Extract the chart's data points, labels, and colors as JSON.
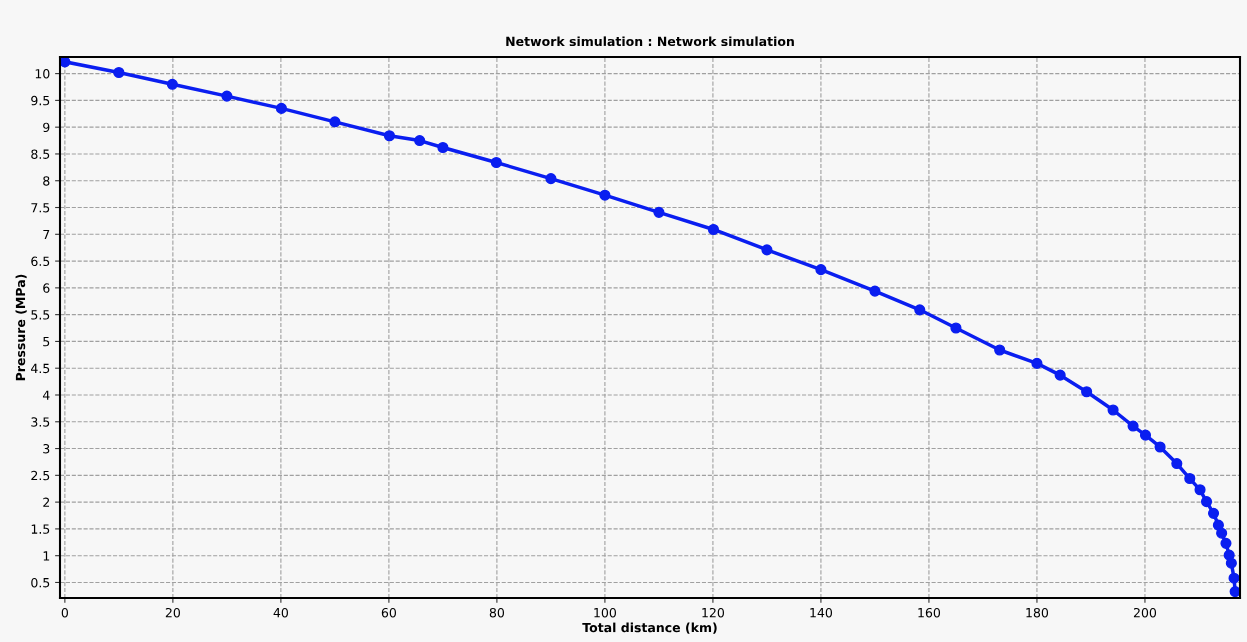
{
  "chart_data": {
    "type": "line",
    "title": "Network simulation : Network simulation",
    "xlabel": "Total distance (km)",
    "ylabel": "Pressure (MPa)",
    "series": [
      {
        "color": "#0a1ef0",
        "x": [
          0,
          10,
          19.9,
          30,
          40.1,
          50,
          60.1,
          65.7,
          70,
          79.9,
          90,
          100,
          110,
          120.1,
          130,
          140,
          150,
          158.3,
          165,
          173.1,
          180,
          184.3,
          189.2,
          194.1,
          197.8,
          200.1,
          202.8,
          205.9,
          208.3,
          210.2,
          211.4,
          212.7,
          213.6,
          214.2,
          215,
          215.6,
          216,
          216.5,
          216.7
        ],
        "values": [
          10.22,
          10.02,
          9.8,
          9.58,
          9.35,
          9.1,
          8.84,
          8.75,
          8.62,
          8.34,
          8.04,
          7.73,
          7.41,
          7.09,
          6.71,
          6.34,
          5.94,
          5.59,
          5.25,
          4.84,
          4.59,
          4.37,
          4.06,
          3.72,
          3.42,
          3.25,
          3.03,
          2.72,
          2.44,
          2.23,
          2.01,
          1.79,
          1.57,
          1.42,
          1.23,
          1.01,
          0.86,
          0.58,
          0.33
        ]
      }
    ],
    "xlim": [
      -0.9,
      217.6
    ],
    "ylim": [
      0.21,
      10.31
    ],
    "xticks": [
      0,
      20,
      40,
      60,
      80,
      100,
      120,
      140,
      160,
      180,
      200
    ],
    "yticks": [
      0.5,
      1,
      1.5,
      2,
      2.5,
      3,
      3.5,
      4,
      4.5,
      5,
      5.5,
      6,
      6.5,
      7,
      7.5,
      8,
      8.5,
      9,
      9.5,
      10
    ],
    "grid": true,
    "marker": "circle",
    "line_style": "solid"
  }
}
